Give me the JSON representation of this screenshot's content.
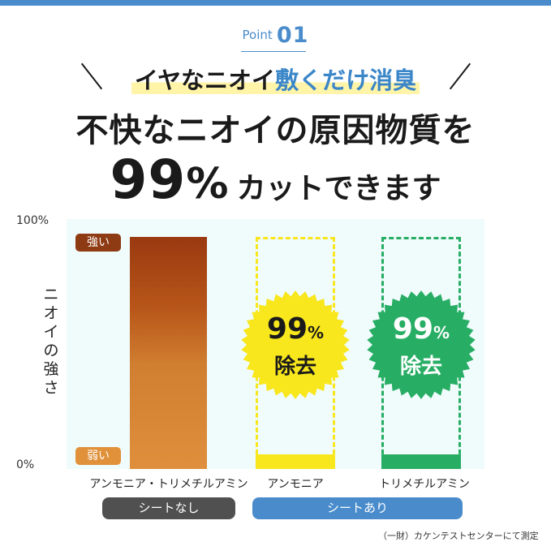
{
  "header": {
    "point_word": "Point",
    "point_num": "01",
    "tagline_part1": "イヤなニオイ",
    "tagline_part2": "敷くだけ消臭",
    "headline1": "不快なニオイの原因物質を",
    "headline2_num": "99",
    "headline2_pct": "%",
    "headline2_rest": "カットできます"
  },
  "chart_data": {
    "type": "bar",
    "ylabel": "ニオイの強さ",
    "yticks": [
      "100%",
      "0%"
    ],
    "ylim": [
      0,
      100
    ],
    "level_tags": [
      "強い",
      "弱い"
    ],
    "categories": [
      "アンモニア・トリメチルアミン",
      "アンモニア",
      "トリメチルアミン"
    ],
    "values": [
      93,
      6,
      6
    ],
    "reference_values": [
      93,
      93,
      93
    ],
    "groups": [
      {
        "label": "シートなし",
        "color": "#505050"
      },
      {
        "label": "シートあり",
        "color": "#4a8ccb"
      }
    ],
    "bar_colors": [
      "#c0641e",
      "#f8e71c",
      "#27ae64"
    ],
    "badges": [
      {
        "value": "99",
        "unit": "%",
        "text": "除去",
        "color": "#f8e71c"
      },
      {
        "value": "99",
        "unit": "%",
        "text": "除去",
        "color": "#27ae64"
      }
    ],
    "note": "（一財）カケンテストセンターにて測定"
  }
}
